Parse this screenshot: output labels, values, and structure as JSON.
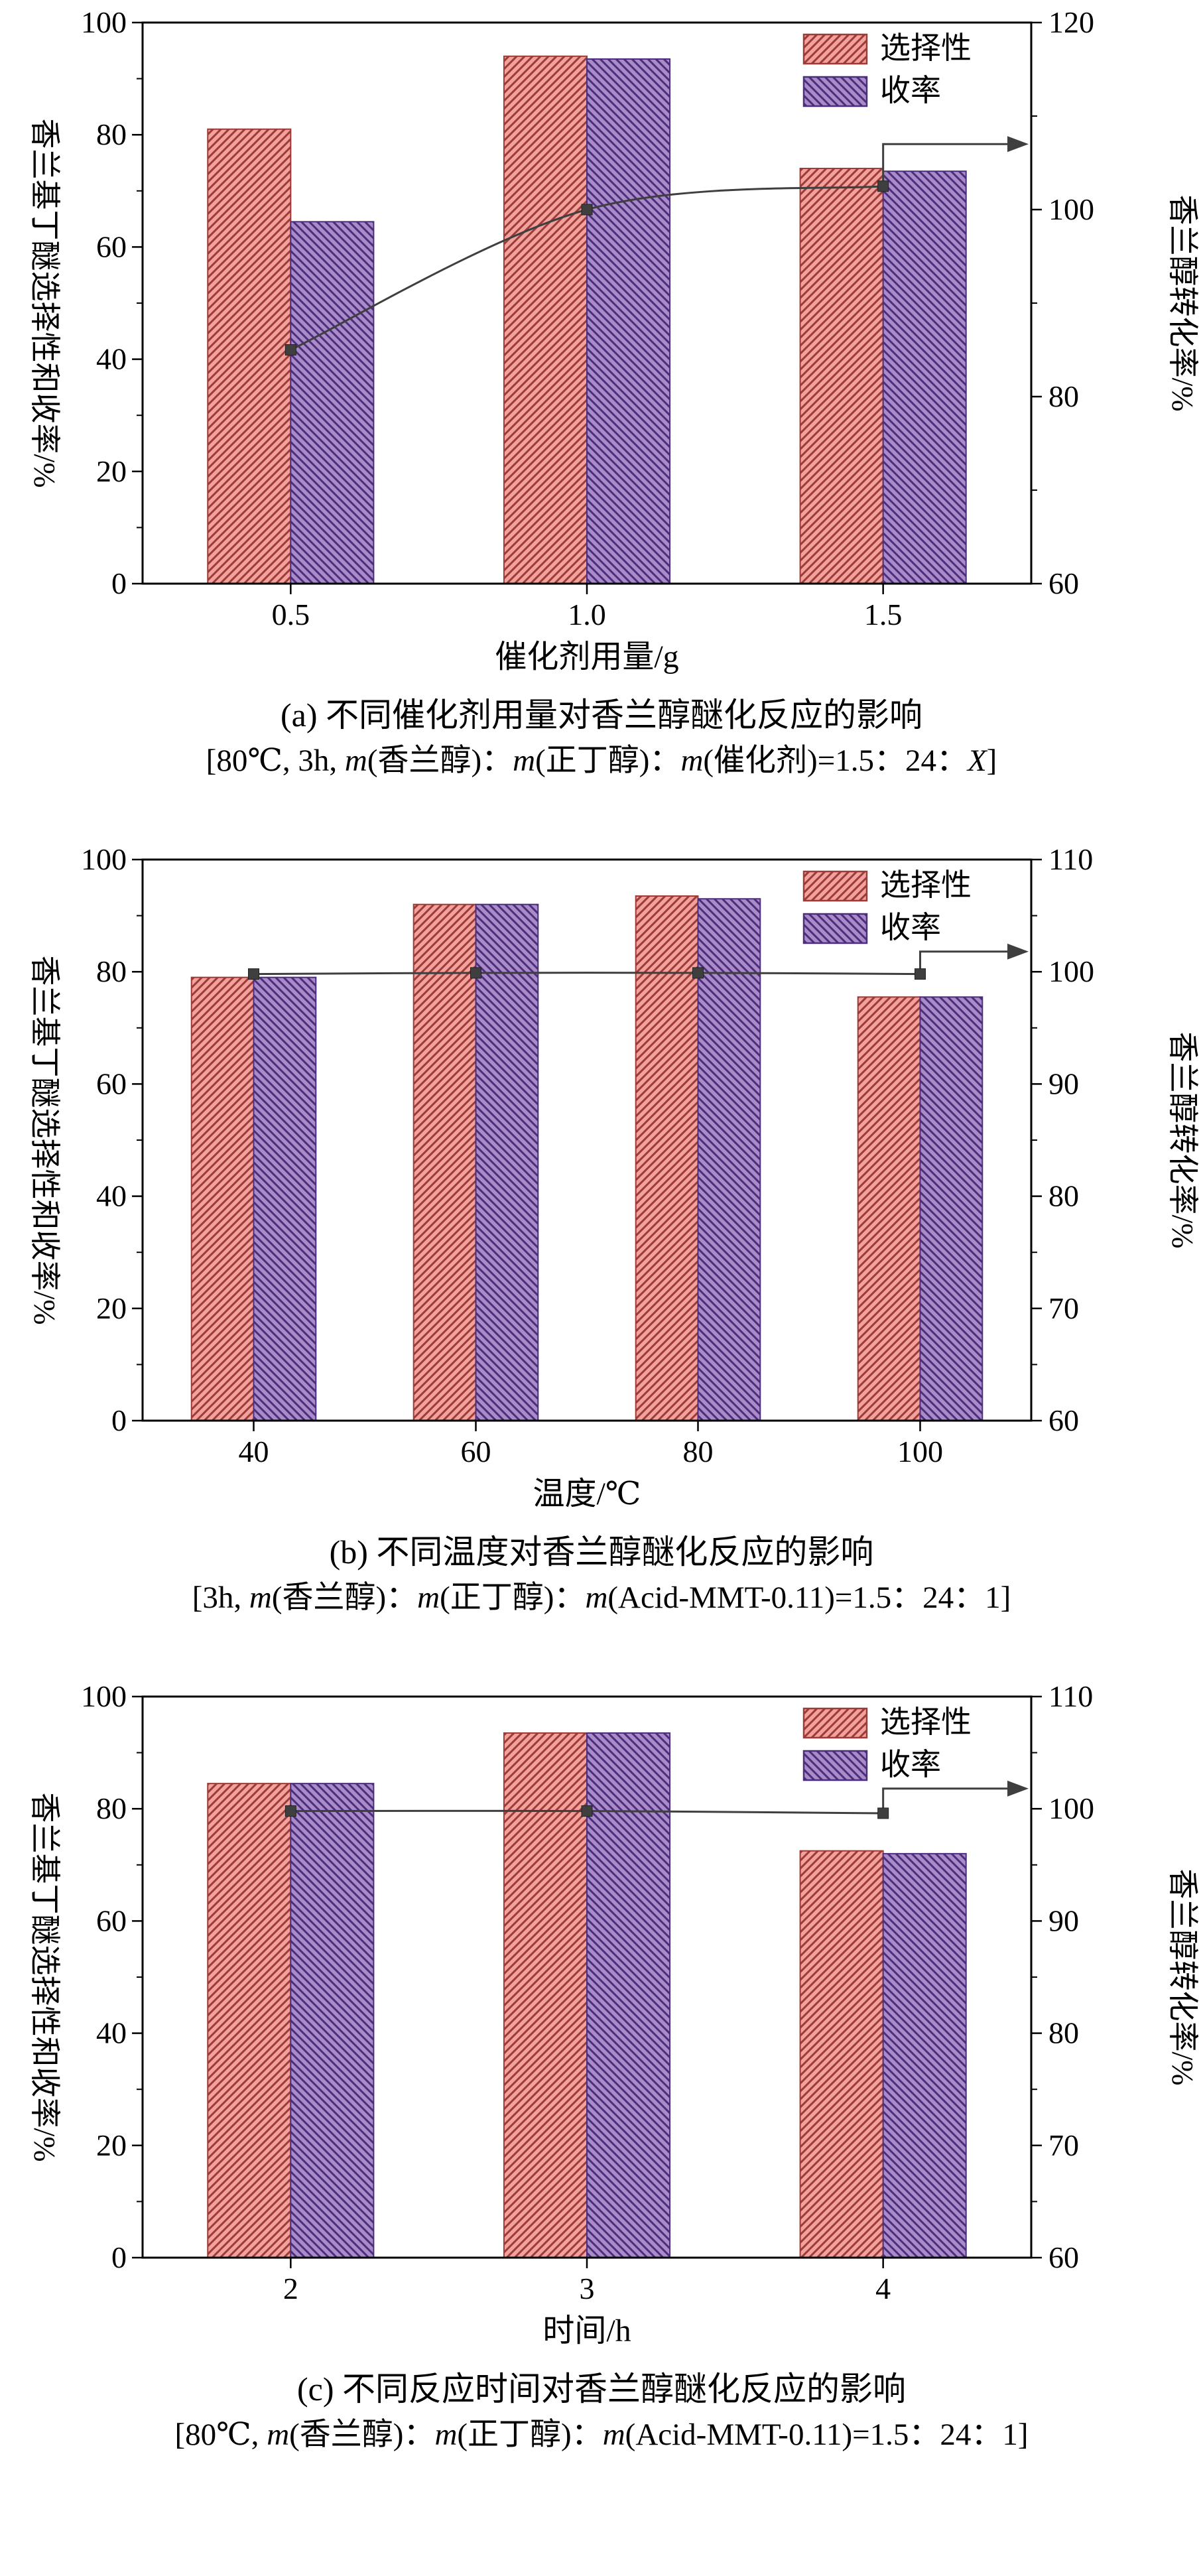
{
  "style": {
    "selectivity_fill": "#f2a19c",
    "selectivity_hatch": "#9c3b38",
    "yield_fill": "#a98cc7",
    "yield_hatch": "#4c2e7d",
    "line_color": "#3f3f3f",
    "axis_color": "#000000"
  },
  "legend": {
    "selectivity": "选择性",
    "yield": "收率"
  },
  "axes": {
    "left_label": "香兰基丁醚选择性和收率/%",
    "right_label": "香兰醇转化率/%"
  },
  "chart_data": [
    {
      "type": "bar+line",
      "panel": "a",
      "categories": [
        "0.5",
        "1.0",
        "1.5"
      ],
      "xlabel": "催化剂用量/g",
      "left_axis": {
        "label": "香兰基丁醚选择性和收率/%",
        "min": 0,
        "max": 100,
        "step": 20
      },
      "right_axis": {
        "label": "香兰醇转化率/%",
        "min": 60,
        "max": 120,
        "step": 20
      },
      "series": [
        {
          "name": "选择性",
          "axis": "left",
          "kind": "bar",
          "values": [
            81,
            94,
            74
          ]
        },
        {
          "name": "收率",
          "axis": "left",
          "kind": "bar",
          "values": [
            64.5,
            93.5,
            73.5
          ]
        },
        {
          "name": "香兰醇转化率",
          "axis": "right",
          "kind": "line",
          "values": [
            85,
            100,
            102.5
          ]
        }
      ],
      "arrow_y_right": 107,
      "caption": "(a) 不同催化剂用量对香兰醇醚化反应的影响",
      "conditions_parts": [
        {
          "text": "[80℃, 3h, ",
          "italic": false
        },
        {
          "text": "m",
          "italic": true
        },
        {
          "text": "(香兰醇)：",
          "italic": false
        },
        {
          "text": "m",
          "italic": true
        },
        {
          "text": "(正丁醇)：",
          "italic": false
        },
        {
          "text": "m",
          "italic": true
        },
        {
          "text": "(催化剂)=1.5：24：",
          "italic": false
        },
        {
          "text": "X",
          "italic": true
        },
        {
          "text": "]",
          "italic": false
        }
      ]
    },
    {
      "type": "bar+line",
      "panel": "b",
      "categories": [
        "40",
        "60",
        "80",
        "100"
      ],
      "xlabel": "温度/℃",
      "left_axis": {
        "label": "香兰基丁醚选择性和收率/%",
        "min": 0,
        "max": 100,
        "step": 20
      },
      "right_axis": {
        "label": "香兰醇转化率/%",
        "min": 60,
        "max": 110,
        "step": 10
      },
      "series": [
        {
          "name": "选择性",
          "axis": "left",
          "kind": "bar",
          "values": [
            79,
            92,
            93.5,
            75.5
          ]
        },
        {
          "name": "收率",
          "axis": "left",
          "kind": "bar",
          "values": [
            79,
            92,
            93,
            75.5
          ]
        },
        {
          "name": "香兰醇转化率",
          "axis": "right",
          "kind": "line",
          "values": [
            99.8,
            99.9,
            99.9,
            99.8
          ]
        }
      ],
      "arrow_y_right": 101.8,
      "caption": "(b) 不同温度对香兰醇醚化反应的影响",
      "conditions_parts": [
        {
          "text": "[3h, ",
          "italic": false
        },
        {
          "text": "m",
          "italic": true
        },
        {
          "text": "(香兰醇)：",
          "italic": false
        },
        {
          "text": "m",
          "italic": true
        },
        {
          "text": "(正丁醇)：",
          "italic": false
        },
        {
          "text": "m",
          "italic": true
        },
        {
          "text": "(Acid-MMT-0.11)=1.5：24：1]",
          "italic": false
        }
      ]
    },
    {
      "type": "bar+line",
      "panel": "c",
      "categories": [
        "2",
        "3",
        "4"
      ],
      "xlabel": "时间/h",
      "left_axis": {
        "label": "香兰基丁醚选择性和收率/%",
        "min": 0,
        "max": 100,
        "step": 20
      },
      "right_axis": {
        "label": "香兰醇转化率/%",
        "min": 60,
        "max": 110,
        "step": 10
      },
      "series": [
        {
          "name": "选择性",
          "axis": "left",
          "kind": "bar",
          "values": [
            84.5,
            93.5,
            72.5
          ]
        },
        {
          "name": "收率",
          "axis": "left",
          "kind": "bar",
          "values": [
            84.5,
            93.5,
            72
          ]
        },
        {
          "name": "香兰醇转化率",
          "axis": "right",
          "kind": "line",
          "values": [
            99.8,
            99.8,
            99.6
          ]
        }
      ],
      "arrow_y_right": 101.8,
      "caption": "(c) 不同反应时间对香兰醇醚化反应的影响",
      "conditions_parts": [
        {
          "text": "[80℃, ",
          "italic": false
        },
        {
          "text": "m",
          "italic": true
        },
        {
          "text": "(香兰醇)：",
          "italic": false
        },
        {
          "text": "m",
          "italic": true
        },
        {
          "text": "(正丁醇)：",
          "italic": false
        },
        {
          "text": "m",
          "italic": true
        },
        {
          "text": "(Acid-MMT-0.11)=1.5：24：1]",
          "italic": false
        }
      ]
    }
  ]
}
